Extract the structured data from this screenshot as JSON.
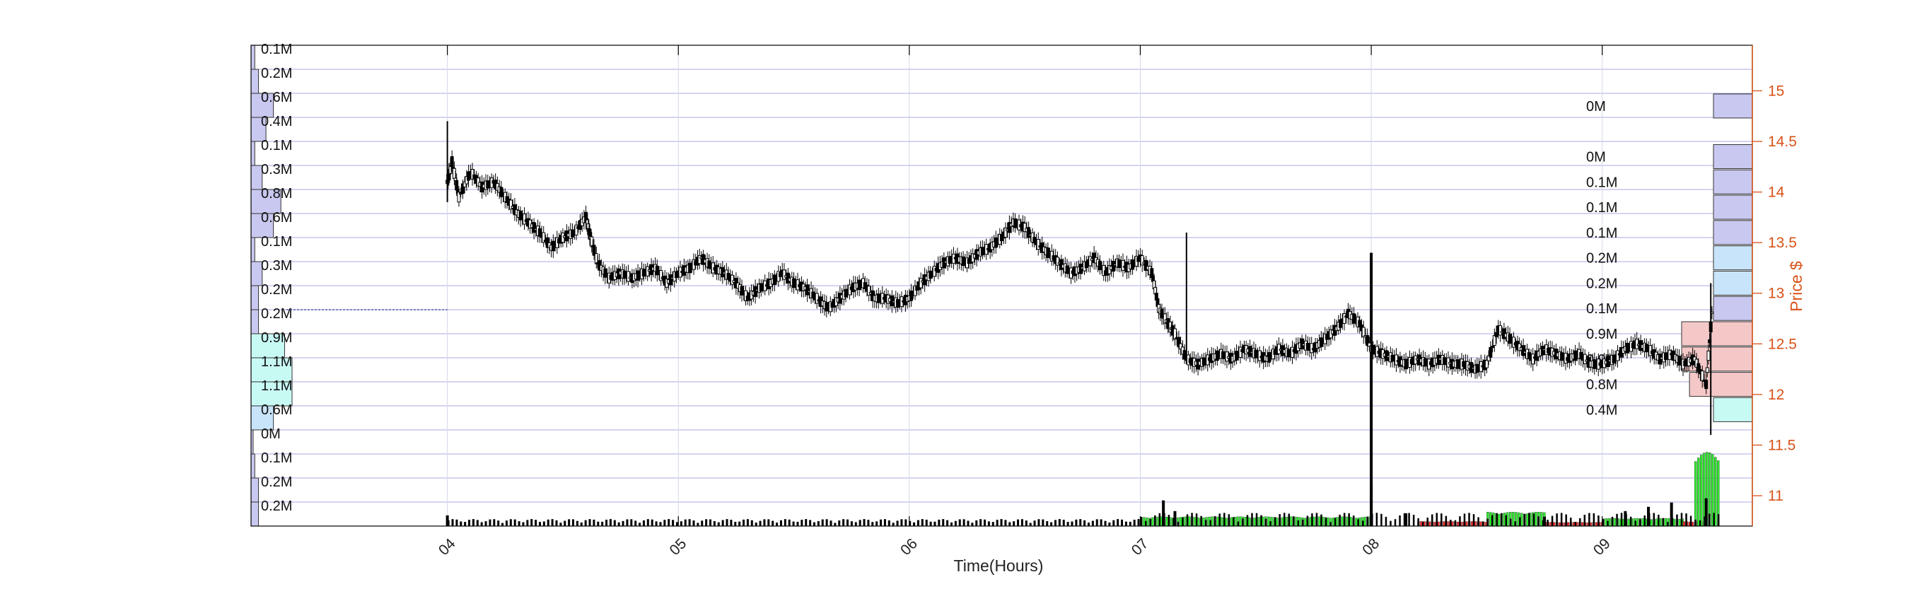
{
  "chart_data": {
    "type": "candlestick",
    "xlabel": "Time(Hours)",
    "ylabel": "Price $",
    "x_ticks": [
      "04",
      "05",
      "06",
      "07",
      "08",
      "09"
    ],
    "x_range_hours": [
      3.15,
      9.65
    ],
    "y_ticks": [
      "11",
      "11.5",
      "12",
      "12.5",
      "13",
      "13.5",
      "14",
      "14.5",
      "15"
    ],
    "ylim": [
      10.7,
      15.45
    ],
    "grid": true,
    "colors": {
      "candle": "#000000",
      "profile_fill": "#c8c8f0",
      "profile_fill_mid": "#c8e4fa",
      "profile_fill_hi": "#c8faf4",
      "profile_buy": "#f5c8c8",
      "grid": "#8c8cdc",
      "price_axis": "#d85218",
      "vol_buy": "#2ee82e",
      "vol_sell": "#e82e2e",
      "vol_neutral": "#000000"
    },
    "left_profile": {
      "labels": [
        "0.1M",
        "0.2M",
        "0.6M",
        "0.4M",
        "0.1M",
        "0.3M",
        "0.8M",
        "0.6M",
        "0.1M",
        "0.3M",
        "0.2M",
        "0.2M",
        "0.9M",
        "1.1M",
        "1.1M",
        "0.6M",
        "0M",
        "0.1M",
        "0.2M",
        "0.2M"
      ],
      "values": [
        0.1,
        0.2,
        0.6,
        0.4,
        0.1,
        0.3,
        0.8,
        0.6,
        0.1,
        0.3,
        0.2,
        0.2,
        0.9,
        1.1,
        1.1,
        0.6,
        0.0,
        0.1,
        0.2,
        0.2
      ]
    },
    "right_profile": {
      "labels": [
        "0M",
        "0M",
        "0.1M",
        "0.1M",
        "0.1M",
        "0.2M",
        "0.2M",
        "0.1M",
        "0.9M",
        "0.9M",
        "0.8M",
        "0.4M"
      ],
      "prices": [
        14.85,
        14.35,
        14.1,
        13.85,
        13.6,
        13.35,
        13.1,
        12.85,
        12.6,
        12.35,
        12.1,
        11.85
      ],
      "values": [
        0.02,
        0.02,
        0.1,
        0.1,
        0.1,
        0.2,
        0.2,
        0.1,
        0.9,
        0.9,
        0.8,
        0.4
      ],
      "buy_share": [
        0,
        0,
        0,
        0,
        0,
        0,
        0,
        0,
        1,
        1,
        0.5,
        0
      ]
    },
    "price_path": [
      [
        4.0,
        14.1
      ],
      [
        4.02,
        14.3
      ],
      [
        4.05,
        13.95
      ],
      [
        4.1,
        14.2
      ],
      [
        4.15,
        14.05
      ],
      [
        4.2,
        14.1
      ],
      [
        4.25,
        13.95
      ],
      [
        4.3,
        13.8
      ],
      [
        4.35,
        13.7
      ],
      [
        4.4,
        13.6
      ],
      [
        4.45,
        13.45
      ],
      [
        4.5,
        13.55
      ],
      [
        4.55,
        13.6
      ],
      [
        4.6,
        13.75
      ],
      [
        4.62,
        13.55
      ],
      [
        4.65,
        13.3
      ],
      [
        4.7,
        13.15
      ],
      [
        4.75,
        13.2
      ],
      [
        4.8,
        13.15
      ],
      [
        4.85,
        13.2
      ],
      [
        4.9,
        13.25
      ],
      [
        4.95,
        13.1
      ],
      [
        5.0,
        13.2
      ],
      [
        5.05,
        13.25
      ],
      [
        5.1,
        13.35
      ],
      [
        5.15,
        13.25
      ],
      [
        5.2,
        13.2
      ],
      [
        5.25,
        13.1
      ],
      [
        5.3,
        12.95
      ],
      [
        5.35,
        13.05
      ],
      [
        5.4,
        13.1
      ],
      [
        5.45,
        13.2
      ],
      [
        5.5,
        13.1
      ],
      [
        5.55,
        13.05
      ],
      [
        5.6,
        12.95
      ],
      [
        5.65,
        12.85
      ],
      [
        5.7,
        12.95
      ],
      [
        5.75,
        13.05
      ],
      [
        5.8,
        13.1
      ],
      [
        5.85,
        12.95
      ],
      [
        5.9,
        12.95
      ],
      [
        5.95,
        12.9
      ],
      [
        6.0,
        12.95
      ],
      [
        6.05,
        13.1
      ],
      [
        6.1,
        13.2
      ],
      [
        6.15,
        13.3
      ],
      [
        6.2,
        13.35
      ],
      [
        6.25,
        13.3
      ],
      [
        6.3,
        13.4
      ],
      [
        6.35,
        13.45
      ],
      [
        6.4,
        13.55
      ],
      [
        6.45,
        13.7
      ],
      [
        6.5,
        13.65
      ],
      [
        6.55,
        13.5
      ],
      [
        6.6,
        13.4
      ],
      [
        6.65,
        13.3
      ],
      [
        6.7,
        13.2
      ],
      [
        6.75,
        13.25
      ],
      [
        6.8,
        13.35
      ],
      [
        6.85,
        13.2
      ],
      [
        6.9,
        13.3
      ],
      [
        6.95,
        13.25
      ],
      [
        7.0,
        13.35
      ],
      [
        7.05,
        13.2
      ],
      [
        7.08,
        12.85
      ],
      [
        7.12,
        12.7
      ],
      [
        7.15,
        12.6
      ],
      [
        7.2,
        12.35
      ],
      [
        7.25,
        12.3
      ],
      [
        7.3,
        12.35
      ],
      [
        7.35,
        12.4
      ],
      [
        7.4,
        12.35
      ],
      [
        7.45,
        12.45
      ],
      [
        7.5,
        12.4
      ],
      [
        7.55,
        12.35
      ],
      [
        7.6,
        12.45
      ],
      [
        7.65,
        12.4
      ],
      [
        7.7,
        12.5
      ],
      [
        7.75,
        12.45
      ],
      [
        7.8,
        12.55
      ],
      [
        7.85,
        12.65
      ],
      [
        7.9,
        12.8
      ],
      [
        7.95,
        12.7
      ],
      [
        8.0,
        12.45
      ],
      [
        8.05,
        12.4
      ],
      [
        8.1,
        12.35
      ],
      [
        8.15,
        12.3
      ],
      [
        8.2,
        12.35
      ],
      [
        8.25,
        12.3
      ],
      [
        8.3,
        12.35
      ],
      [
        8.35,
        12.3
      ],
      [
        8.4,
        12.3
      ],
      [
        8.45,
        12.25
      ],
      [
        8.5,
        12.3
      ],
      [
        8.55,
        12.65
      ],
      [
        8.6,
        12.55
      ],
      [
        8.65,
        12.45
      ],
      [
        8.7,
        12.35
      ],
      [
        8.75,
        12.45
      ],
      [
        8.8,
        12.4
      ],
      [
        8.85,
        12.35
      ],
      [
        8.9,
        12.4
      ],
      [
        8.95,
        12.3
      ],
      [
        9.0,
        12.3
      ],
      [
        9.05,
        12.35
      ],
      [
        9.1,
        12.45
      ],
      [
        9.15,
        12.5
      ],
      [
        9.2,
        12.45
      ],
      [
        9.25,
        12.35
      ],
      [
        9.3,
        12.4
      ],
      [
        9.35,
        12.3
      ],
      [
        9.4,
        12.35
      ],
      [
        9.45,
        12.1
      ],
      [
        9.48,
        12.95
      ]
    ],
    "price_spikes": [
      {
        "x": 4.0,
        "low": 13.9,
        "high": 14.7
      },
      {
        "x": 7.2,
        "low": 12.3,
        "high": 13.6
      },
      {
        "x": 8.0,
        "low": 11.0,
        "high": 13.4
      },
      {
        "x": 9.47,
        "low": 11.6,
        "high": 13.1
      }
    ],
    "volume_segments": [
      {
        "from": 7.0,
        "to": 8.0,
        "share": 0.12,
        "kind": "buy"
      },
      {
        "from": 8.5,
        "to": 8.75,
        "share": 0.18,
        "kind": "buy"
      },
      {
        "from": 8.2,
        "to": 8.5,
        "share": 0.06,
        "kind": "sell"
      },
      {
        "from": 8.75,
        "to": 9.0,
        "share": 0.05,
        "kind": "sell"
      },
      {
        "from": 9.0,
        "to": 9.35,
        "share": 0.1,
        "kind": "buy"
      },
      {
        "from": 9.35,
        "to": 9.45,
        "share": 0.06,
        "kind": "sell"
      },
      {
        "from": 9.4,
        "to": 9.5,
        "share": 0.95,
        "kind": "buy"
      }
    ],
    "volume_spikes": [
      {
        "x": 4.0,
        "share": 0.25
      },
      {
        "x": 7.1,
        "share": 0.6
      },
      {
        "x": 7.15,
        "share": 0.35
      },
      {
        "x": 8.0,
        "share": 1.0
      },
      {
        "x": 8.15,
        "share": 0.3
      },
      {
        "x": 8.75,
        "share": 0.22
      },
      {
        "x": 9.1,
        "share": 0.35
      },
      {
        "x": 9.2,
        "share": 0.45
      },
      {
        "x": 9.3,
        "share": 0.55
      },
      {
        "x": 9.45,
        "share": 0.65
      }
    ]
  }
}
